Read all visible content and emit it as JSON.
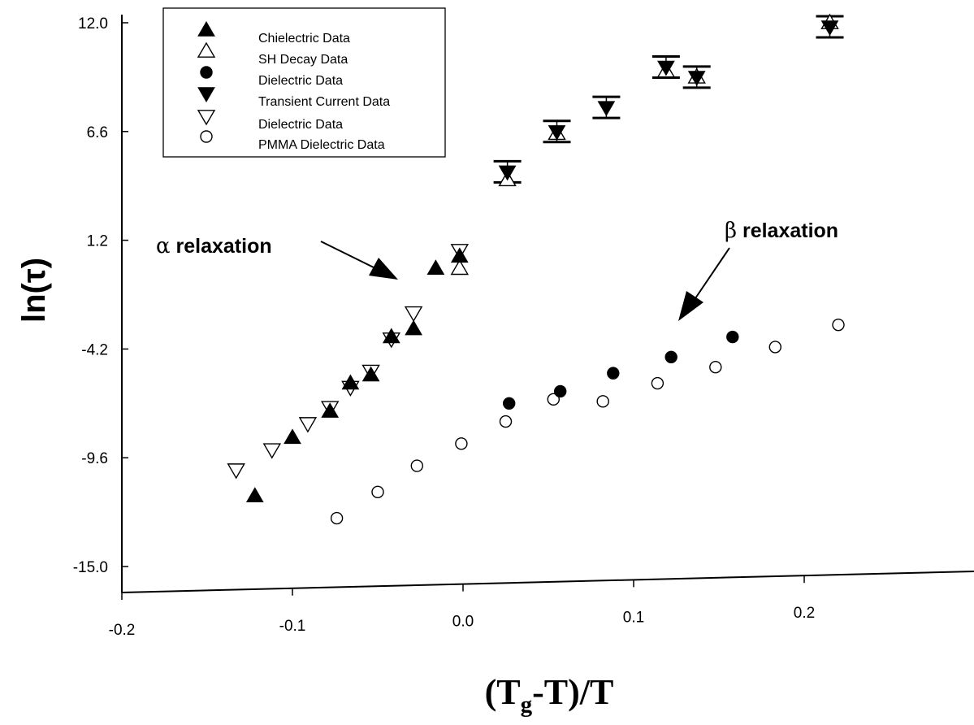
{
  "chart_data": {
    "type": "scatter",
    "title": "",
    "xlabel_parts": {
      "pre": "(T",
      "sub": "g",
      "post": "-T)/T"
    },
    "ylabel": "ln(τ)",
    "xlim": [
      -0.2,
      0.3
    ],
    "ylim": [
      -16.9,
      13.2
    ],
    "x_ticks": [
      -0.2,
      -0.1,
      0.0,
      0.1,
      0.2
    ],
    "x_tick_labels": [
      "-0.2",
      "-0.1",
      "0.0",
      "0.1",
      "0.2"
    ],
    "y_ticks": [
      -15.0,
      -9.6,
      -4.2,
      1.2,
      6.6,
      12.0
    ],
    "y_tick_labels": [
      "-15.0",
      "-9.6",
      "-4.2",
      "1.2",
      "6.6",
      "12.0"
    ],
    "grid": false,
    "legend_position": "top-left",
    "series": [
      {
        "name": "Chielectric Data",
        "marker": "triangle-up-filled",
        "x": [
          -0.122,
          -0.1,
          -0.078,
          -0.066,
          -0.054,
          -0.042,
          -0.029,
          -0.016,
          -0.002
        ],
        "y": [
          -11.5,
          -8.6,
          -7.3,
          -5.9,
          -5.5,
          -3.6,
          -3.2,
          -0.2,
          0.4
        ]
      },
      {
        "name": "SH Decay Data",
        "marker": "triangle-up-open",
        "x": [
          -0.002,
          0.026,
          0.055,
          0.119,
          0.137,
          0.215
        ],
        "y": [
          -0.2,
          4.2,
          6.5,
          9.6,
          9.3,
          12.0
        ]
      },
      {
        "name": "Dielectric Data",
        "marker": "circle-filled",
        "x": [
          0.027,
          0.057,
          0.088,
          0.122,
          0.158
        ],
        "y": [
          -6.9,
          -6.3,
          -5.4,
          -4.6,
          -3.6
        ]
      },
      {
        "name": "Transient Current Data",
        "marker": "triangle-down-filled",
        "x": [
          0.026,
          0.055,
          0.084,
          0.119,
          0.137,
          0.215
        ],
        "y": [
          4.6,
          6.6,
          7.8,
          9.8,
          9.3,
          11.8
        ]
      },
      {
        "name": "Dielectric Data",
        "marker": "triangle-down-open",
        "x": [
          -0.133,
          -0.112,
          -0.091,
          -0.078,
          -0.066,
          -0.054,
          -0.042,
          -0.029,
          -0.002
        ],
        "y": [
          -10.2,
          -9.2,
          -7.9,
          -7.1,
          -6.1,
          -5.3,
          -3.7,
          -2.4,
          0.7
        ]
      },
      {
        "name": "PMMA Dielectric Data",
        "marker": "circle-open",
        "x": [
          -0.074,
          -0.05,
          -0.027,
          -0.001,
          0.025,
          0.053,
          0.082,
          0.114,
          0.148,
          0.183,
          0.22
        ],
        "y": [
          -12.6,
          -11.3,
          -10.0,
          -8.9,
          -7.8,
          -6.7,
          -6.8,
          -5.9,
          -5.1,
          -4.1,
          -3.0
        ]
      }
    ],
    "annotations": [
      {
        "greek": "α",
        "text": " relaxation"
      },
      {
        "greek": "β",
        "text": " relaxation"
      }
    ]
  }
}
